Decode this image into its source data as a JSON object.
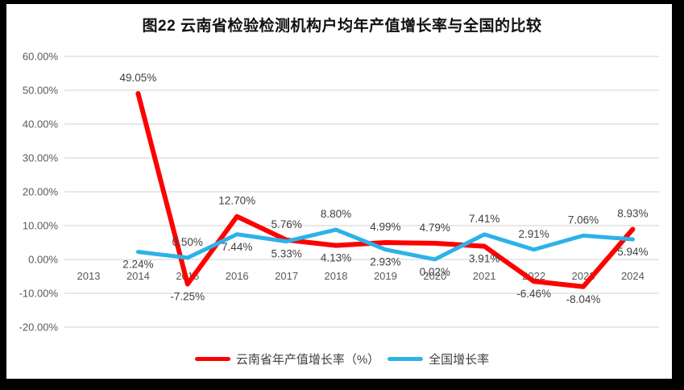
{
  "window": {
    "frame_color": "#000000",
    "canvas_color": "#ffffff"
  },
  "chart_data": {
    "type": "line",
    "title": "图22  云南省检验检测机构户均年产值增长率与全国的比较",
    "categories": [
      "2013",
      "2014",
      "2015",
      "2016",
      "2017",
      "2018",
      "2019",
      "2020",
      "2021",
      "2022",
      "2023",
      "2024"
    ],
    "series": [
      {
        "name": "云南省年产值增长率（%）",
        "color": "#FE0000",
        "values": [
          null,
          49.05,
          -7.25,
          12.7,
          5.76,
          4.13,
          4.99,
          4.79,
          3.91,
          -6.46,
          -8.04,
          8.93
        ]
      },
      {
        "name": "全国增长率",
        "color": "#2DB2E8",
        "values": [
          null,
          2.24,
          0.5,
          7.44,
          5.33,
          8.8,
          2.93,
          0.02,
          7.41,
          2.91,
          7.06,
          5.94
        ]
      }
    ],
    "y_axis": {
      "min": -20,
      "max": 60,
      "tick_step": 10,
      "tick_labels_top_to_bottom": [
        "60.00%",
        "50.00%",
        "40.00%",
        "30.00%",
        "20.00%",
        "10.00%",
        "0.00%",
        "-10.00%",
        "-20.00%"
      ]
    },
    "grid": true,
    "legend_position": "bottom",
    "data_label_format": "0.00%",
    "styles": {
      "axis_text_color": "#595959",
      "data_label_color": "#404040",
      "gridline_color": "#D9D9D9",
      "title_color": "#111111"
    }
  }
}
